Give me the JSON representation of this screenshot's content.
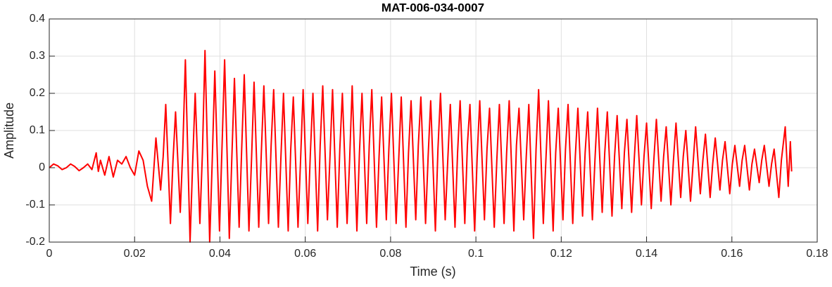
{
  "chart_data": {
    "type": "line",
    "title": "MAT-006-034-0007",
    "xlabel": "Time (s)",
    "ylabel": "Amplitude",
    "color": "#ff0000",
    "grid": true,
    "xlim": [
      0,
      0.18
    ],
    "ylim": [
      -0.2,
      0.4
    ],
    "xticks": [
      0,
      0.02,
      0.04,
      0.06,
      0.08,
      0.1,
      0.12,
      0.14,
      0.16,
      0.18
    ],
    "yticks": [
      -0.2,
      -0.1,
      0,
      0.1,
      0.2,
      0.3,
      0.4
    ],
    "x": [
      0,
      0.001,
      0.002,
      0.003,
      0.004,
      0.005,
      0.006,
      0.007,
      0.008,
      0.009,
      0.01,
      0.011,
      0.0115,
      0.012,
      0.013,
      0.014,
      0.015,
      0.016,
      0.017,
      0.018,
      0.019,
      0.02,
      0.021,
      0.022,
      0.023,
      0.024,
      0.025,
      0.0261,
      0.0267,
      0.0273,
      0.0284,
      0.029,
      0.0296,
      0.0307,
      0.0313,
      0.0319,
      0.033,
      0.0336,
      0.0342,
      0.0353,
      0.0359,
      0.0365,
      0.0376,
      0.0382,
      0.0388,
      0.0399,
      0.0405,
      0.0411,
      0.0422,
      0.0428,
      0.0434,
      0.0445,
      0.0451,
      0.0457,
      0.0468,
      0.0474,
      0.048,
      0.0491,
      0.0497,
      0.0503,
      0.0514,
      0.052,
      0.0526,
      0.0537,
      0.0543,
      0.0549,
      0.056,
      0.0566,
      0.0572,
      0.0583,
      0.0589,
      0.0595,
      0.0606,
      0.0612,
      0.0618,
      0.0629,
      0.0635,
      0.0641,
      0.0652,
      0.0658,
      0.0664,
      0.0675,
      0.0681,
      0.0687,
      0.0698,
      0.0704,
      0.071,
      0.0721,
      0.0727,
      0.0733,
      0.0744,
      0.075,
      0.0756,
      0.0767,
      0.0773,
      0.0779,
      0.079,
      0.0796,
      0.0802,
      0.0813,
      0.0819,
      0.0825,
      0.0836,
      0.0842,
      0.0848,
      0.0859,
      0.0865,
      0.0871,
      0.0882,
      0.0888,
      0.0894,
      0.0905,
      0.0911,
      0.0917,
      0.0928,
      0.0934,
      0.094,
      0.0951,
      0.0957,
      0.0963,
      0.0974,
      0.098,
      0.0986,
      0.0997,
      0.1003,
      0.1009,
      0.102,
      0.1026,
      0.1032,
      0.1043,
      0.1049,
      0.1055,
      0.1066,
      0.1072,
      0.1078,
      0.1089,
      0.1095,
      0.1101,
      0.1112,
      0.1118,
      0.1124,
      0.1135,
      0.1141,
      0.1147,
      0.1158,
      0.1164,
      0.117,
      0.1181,
      0.1187,
      0.1193,
      0.1204,
      0.121,
      0.1216,
      0.1227,
      0.1233,
      0.1239,
      0.125,
      0.1256,
      0.1262,
      0.1273,
      0.1279,
      0.1285,
      0.1296,
      0.1302,
      0.1308,
      0.1319,
      0.1325,
      0.1331,
      0.1342,
      0.1348,
      0.1354,
      0.1365,
      0.1371,
      0.1377,
      0.1388,
      0.1394,
      0.14,
      0.1411,
      0.1417,
      0.1423,
      0.1434,
      0.144,
      0.1446,
      0.1457,
      0.1463,
      0.1469,
      0.148,
      0.1486,
      0.1492,
      0.1503,
      0.1509,
      0.1515,
      0.1526,
      0.1532,
      0.1538,
      0.1549,
      0.1555,
      0.1561,
      0.1572,
      0.1578,
      0.1584,
      0.1595,
      0.1601,
      0.1607,
      0.1618,
      0.1624,
      0.163,
      0.1641,
      0.1647,
      0.1653,
      0.1664,
      0.167,
      0.1676,
      0.1687,
      0.1693,
      0.1699,
      0.171,
      0.1716,
      0.1725,
      0.1732,
      0.1737,
      0.174
    ],
    "values": [
      0,
      0.01,
      0.005,
      -0.005,
      0,
      0.01,
      0.003,
      -0.008,
      0,
      0.01,
      -0.005,
      0.04,
      -0.01,
      0.02,
      -0.02,
      0.03,
      -0.025,
      0.02,
      0.01,
      0.03,
      0.0,
      -0.02,
      0.045,
      0.02,
      -0.05,
      -0.09,
      0.08,
      -0.06,
      0.03,
      0.17,
      -0.15,
      0.02,
      0.15,
      -0.12,
      0.05,
      0.29,
      -0.2,
      0.01,
      0.2,
      -0.15,
      0.04,
      0.315,
      -0.2,
      0.02,
      0.26,
      -0.17,
      0.06,
      0.29,
      -0.19,
      0.03,
      0.24,
      -0.16,
      0.05,
      0.25,
      -0.17,
      0.02,
      0.23,
      -0.16,
      0.04,
      0.22,
      -0.15,
      0.06,
      0.21,
      -0.16,
      0.03,
      0.2,
      -0.17,
      0.05,
      0.19,
      -0.16,
      0.02,
      0.21,
      -0.15,
      0.04,
      0.2,
      -0.17,
      0.06,
      0.22,
      -0.14,
      0.03,
      0.21,
      -0.16,
      0.05,
      0.2,
      -0.15,
      0.02,
      0.22,
      -0.17,
      0.04,
      0.2,
      -0.15,
      0.06,
      0.21,
      -0.16,
      0.03,
      0.19,
      -0.14,
      0.05,
      0.2,
      -0.15,
      0.02,
      0.19,
      -0.16,
      0.04,
      0.18,
      -0.14,
      0.06,
      0.19,
      -0.15,
      0.03,
      0.18,
      -0.17,
      0.05,
      0.2,
      -0.14,
      0.02,
      0.17,
      -0.16,
      0.04,
      0.18,
      -0.15,
      0.06,
      0.17,
      -0.17,
      0.03,
      0.18,
      -0.14,
      0.05,
      0.16,
      -0.16,
      0.02,
      0.17,
      -0.15,
      0.04,
      0.18,
      -0.17,
      0.06,
      0.16,
      -0.14,
      0.03,
      0.17,
      -0.19,
      0.05,
      0.21,
      -0.15,
      0.02,
      0.18,
      -0.17,
      0.04,
      0.16,
      -0.14,
      0.05,
      0.17,
      -0.15,
      0.03,
      0.16,
      -0.13,
      0.04,
      0.15,
      -0.14,
      0.02,
      0.16,
      -0.12,
      0.04,
      0.15,
      -0.13,
      0.03,
      0.14,
      -0.11,
      0.04,
      0.13,
      -0.12,
      0.02,
      0.14,
      -0.1,
      0.03,
      0.12,
      -0.11,
      0.02,
      0.13,
      -0.09,
      0.03,
      0.11,
      -0.1,
      0.02,
      0.12,
      -0.08,
      0.03,
      0.1,
      -0.09,
      0.01,
      0.11,
      -0.07,
      0.02,
      0.09,
      -0.08,
      0.01,
      0.08,
      -0.06,
      0.02,
      0.07,
      -0.07,
      0.01,
      0.06,
      -0.05,
      0.02,
      0.06,
      -0.06,
      0.01,
      0.05,
      -0.04,
      0.02,
      0.06,
      -0.05,
      0.01,
      0.05,
      -0.08,
      0.02,
      0.11,
      -0.05,
      0.07,
      -0.01
    ]
  }
}
